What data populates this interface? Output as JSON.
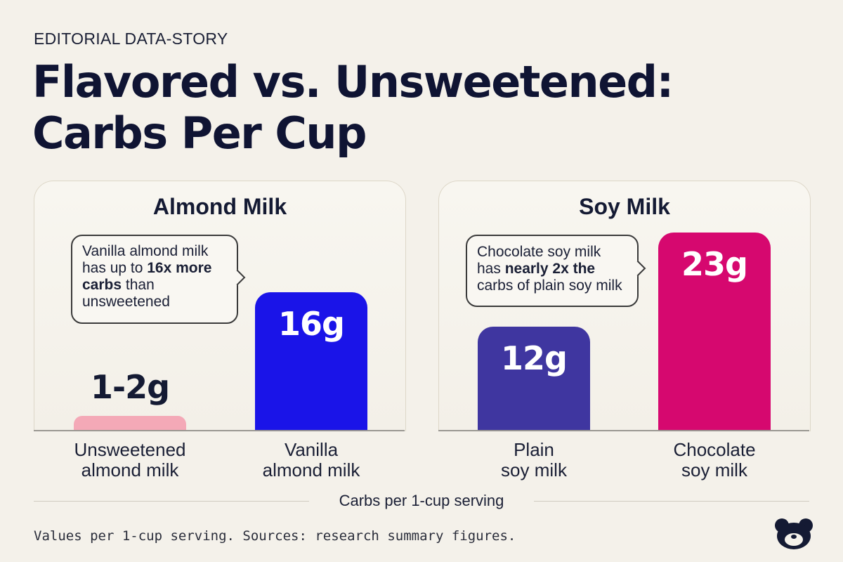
{
  "kicker": "EDITORIAL DATA-STORY",
  "headline": {
    "line1": "Flavored vs. Unsweetened:",
    "line2": "Carbs Per Cup"
  },
  "axis_title": "Carbs per 1-cup serving",
  "footnote": "Values per 1-cup serving. Sources: research summary figures.",
  "logo_icon": "bear-head-logo-icon",
  "colors": {
    "background": "#f4f1ea",
    "unsweetened_almond": "#f4a9b7",
    "vanilla_almond": "#1a14e8",
    "plain_soy": "#3f36a0",
    "chocolate_soy": "#d6086f"
  },
  "chart_data": [
    {
      "type": "bar",
      "title": "Almond Milk",
      "xlabel": "",
      "ylabel": "",
      "categories": [
        "Unsweetened almond milk",
        "Vanilla almond milk"
      ],
      "values": [
        1.5,
        16
      ],
      "value_labels": [
        "1-2g",
        "16g"
      ],
      "ylim": [
        0,
        27
      ],
      "bar_colors": [
        "#f4a9b7",
        "#1a14e8"
      ],
      "label_colors": [
        "#141a33",
        "#ffffff"
      ],
      "annotation": {
        "pre": "Vanilla almond milk has up to ",
        "bold1": "16x more",
        "bold2": "carbs",
        "post": " than unsweetened"
      }
    },
    {
      "type": "bar",
      "title": "Soy Milk",
      "xlabel": "",
      "ylabel": "",
      "categories": [
        "Plain soy milk",
        "Chocolate soy milk"
      ],
      "values": [
        12,
        23
      ],
      "value_labels": [
        "12g",
        "23g"
      ],
      "ylim": [
        0,
        27
      ],
      "bar_colors": [
        "#3f36a0",
        "#d6086f"
      ],
      "label_colors": [
        "#ffffff",
        "#ffffff"
      ],
      "annotation": {
        "pre": "Chocolate soy milk has ",
        "bold1": "nearly 2x the",
        "bold2": "",
        "post": "carbs of plain soy milk"
      }
    }
  ],
  "category_lines": [
    [
      "Unsweetened",
      "almond milk"
    ],
    [
      "Vanilla",
      "almond milk"
    ],
    [
      "Plain",
      "soy milk"
    ],
    [
      "Chocolate",
      "soy milk"
    ]
  ]
}
